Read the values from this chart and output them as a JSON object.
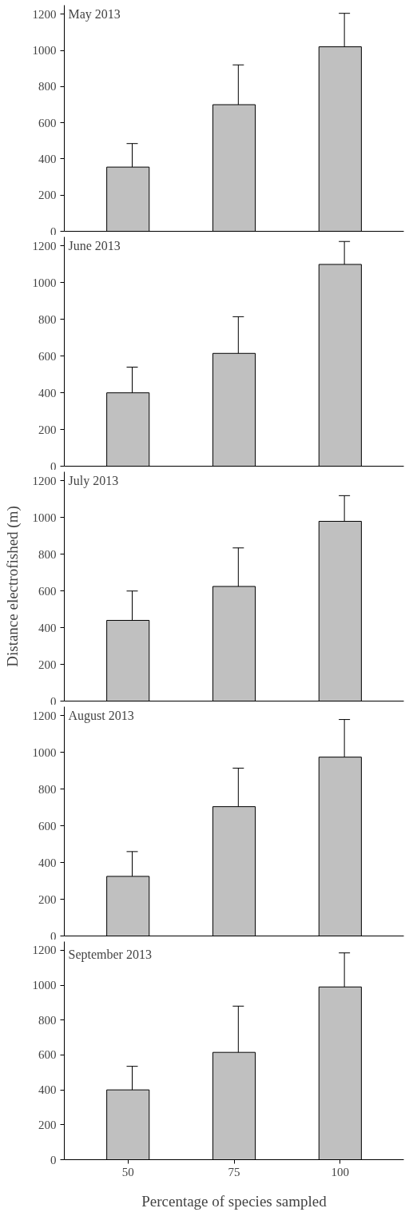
{
  "chart_data": [
    {
      "type": "bar",
      "title": "May 2013",
      "categories": [
        "50",
        "75",
        "100"
      ],
      "values": [
        355,
        700,
        1020
      ],
      "errors": [
        [
          355,
          485
        ],
        [
          700,
          920
        ],
        [
          1020,
          1205
        ]
      ],
      "color": "#c0c0c0",
      "ylim": [
        0,
        1250
      ],
      "yticks": [
        0,
        200,
        400,
        600,
        800,
        1000,
        1200
      ],
      "tick_labels": "y",
      "grid": false
    },
    {
      "type": "bar",
      "title": "June 2013",
      "categories": [
        "50",
        "75",
        "100"
      ],
      "values": [
        400,
        615,
        1100
      ],
      "errors": [
        [
          400,
          540
        ],
        [
          615,
          815
        ],
        [
          1100,
          1225
        ]
      ],
      "color": "#c0c0c0",
      "ylim": [
        0,
        1250
      ],
      "yticks": [
        0,
        200,
        400,
        600,
        800,
        1000,
        1200
      ],
      "tick_labels": "y",
      "grid": false
    },
    {
      "type": "bar",
      "title": "July 2013",
      "ylabel": "Distance electrofished (m)",
      "categories": [
        "50",
        "75",
        "100"
      ],
      "values": [
        440,
        625,
        980
      ],
      "errors": [
        [
          440,
          600
        ],
        [
          625,
          835
        ],
        [
          980,
          1120
        ]
      ],
      "color": "#c0c0c0",
      "ylim": [
        0,
        1250
      ],
      "yticks": [
        0,
        200,
        400,
        600,
        800,
        1000,
        1200
      ],
      "tick_labels": "y",
      "grid": false
    },
    {
      "type": "bar",
      "title": "August 2013",
      "categories": [
        "50",
        "75",
        "100"
      ],
      "values": [
        325,
        705,
        975
      ],
      "errors": [
        [
          325,
          460
        ],
        [
          705,
          915
        ],
        [
          975,
          1180
        ]
      ],
      "color": "#c0c0c0",
      "ylim": [
        0,
        1250
      ],
      "yticks": [
        0,
        200,
        400,
        600,
        800,
        1000,
        1200
      ],
      "tick_labels": "y",
      "grid": false
    },
    {
      "type": "bar",
      "title": "September 2013",
      "xlabel": "Percentage of species sampled",
      "categories": [
        "50",
        "75",
        "100"
      ],
      "values": [
        400,
        615,
        990
      ],
      "errors": [
        [
          400,
          535
        ],
        [
          615,
          880
        ],
        [
          990,
          1185
        ]
      ],
      "color": "#c0c0c0",
      "ylim": [
        0,
        1250
      ],
      "yticks": [
        0,
        200,
        400,
        600,
        800,
        1000,
        1200
      ],
      "grid": false
    }
  ]
}
